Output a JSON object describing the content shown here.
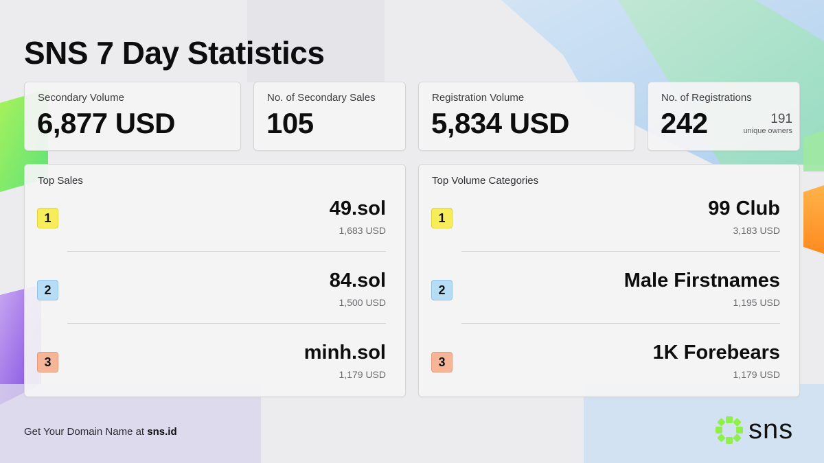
{
  "title": "SNS 7 Day Statistics",
  "stats": [
    {
      "label": "Secondary Volume",
      "value": "6,877 USD"
    },
    {
      "label": "No. of Secondary Sales",
      "value": "105"
    },
    {
      "label": "Registration Volume",
      "value": "5,834 USD"
    },
    {
      "label": "No. of Registrations",
      "value": "242",
      "extra_value": "191",
      "extra_label": "unique owners"
    }
  ],
  "top_sales": {
    "title": "Top Sales",
    "items": [
      {
        "rank": "1",
        "name": "49.sol",
        "value": "1,683 USD"
      },
      {
        "rank": "2",
        "name": "84.sol",
        "value": "1,500 USD"
      },
      {
        "rank": "3",
        "name": "minh.sol",
        "value": "1,179 USD"
      }
    ]
  },
  "top_categories": {
    "title": "Top Volume Categories",
    "items": [
      {
        "rank": "1",
        "name": "99 Club",
        "value": "3,183 USD"
      },
      {
        "rank": "2",
        "name": "Male Firstnames",
        "value": "1,195 USD"
      },
      {
        "rank": "3",
        "name": "1K Forebears",
        "value": "1,179 USD"
      }
    ]
  },
  "footer": {
    "text": "Get Your Domain Name at",
    "link": "sns.id"
  },
  "logo": {
    "text": "sns",
    "icon": "sns-logo-icon"
  },
  "colors": {
    "rank1": "#f7ec5a",
    "rank2": "#b7dcf6",
    "rank3": "#f7b598",
    "brand_green": "#8fef4c"
  }
}
